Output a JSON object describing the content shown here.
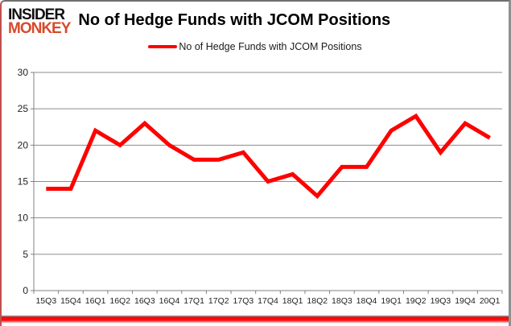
{
  "logo": {
    "line1": "INSIDER",
    "line2": "MONKEY"
  },
  "header": {
    "title": "No of Hedge Funds with JCOM Positions"
  },
  "legend": {
    "label": "No of Hedge Funds with JCOM Positions"
  },
  "colors": {
    "line": "#ff0000",
    "grid": "#8c8c8c",
    "axis_line": "#808080",
    "axis_text": "#1f1f1f",
    "logo_insider": "#111111",
    "logo_monkey": "#d7492b",
    "bottom_bar": "#ff0000"
  },
  "chart_data": {
    "type": "line",
    "title": "No of Hedge Funds with JCOM Positions",
    "categories": [
      "15Q3",
      "15Q4",
      "16Q1",
      "16Q2",
      "16Q3",
      "16Q4",
      "17Q1",
      "17Q2",
      "17Q3",
      "17Q4",
      "18Q1",
      "18Q2",
      "18Q3",
      "18Q4",
      "19Q1",
      "19Q2",
      "19Q3",
      "19Q4",
      "20Q1"
    ],
    "series": [
      {
        "name": "No of Hedge Funds with JCOM Positions",
        "values": [
          14,
          14,
          22,
          20,
          23,
          20,
          18,
          18,
          19,
          15,
          16,
          13,
          17,
          17,
          22,
          24,
          19,
          23,
          21
        ]
      }
    ],
    "xlabel": "",
    "ylabel": "",
    "ylim": [
      0,
      30
    ],
    "yticks": [
      0,
      5,
      10,
      15,
      20,
      25,
      30
    ],
    "grid": true,
    "legend_position": "top-center"
  }
}
